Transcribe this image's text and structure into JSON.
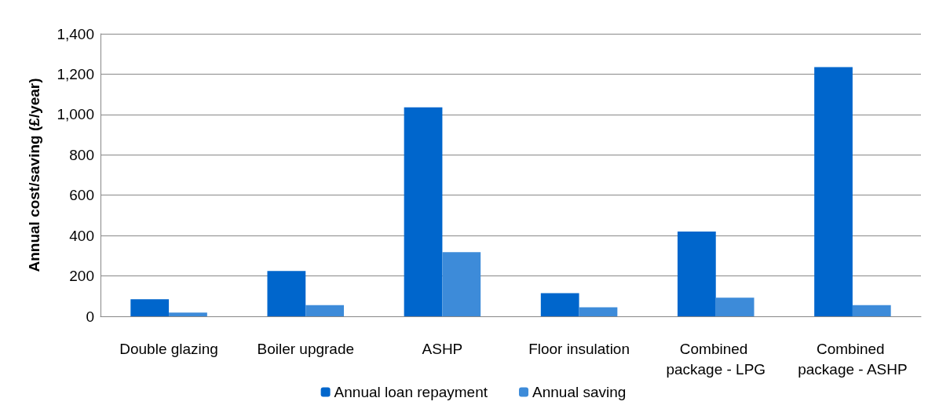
{
  "chart_data": {
    "type": "bar",
    "ylabel": "Annual cost/saving (£/year)",
    "categories": [
      "Double glazing",
      "Boiler upgrade",
      "ASHP",
      "Floor insulation",
      "Combined package - LPG",
      "Combined package - ASHP"
    ],
    "series": [
      {
        "name": "Annual loan repayment",
        "color": "#0066cc",
        "values": [
          85,
          225,
          1035,
          115,
          420,
          1235
        ]
      },
      {
        "name": "Annual saving",
        "color": "#3d8bd9",
        "values": [
          18,
          55,
          318,
          45,
          92,
          55
        ]
      }
    ],
    "ylim": [
      0,
      1400
    ],
    "yticks": [
      0,
      200,
      400,
      600,
      800,
      {
        "value": 1000,
        "label": "1,000"
      },
      {
        "value": 1200,
        "label": "1,200"
      },
      {
        "value": 1400,
        "label": "1,400"
      }
    ],
    "grid": "y",
    "legend": "bottom"
  }
}
